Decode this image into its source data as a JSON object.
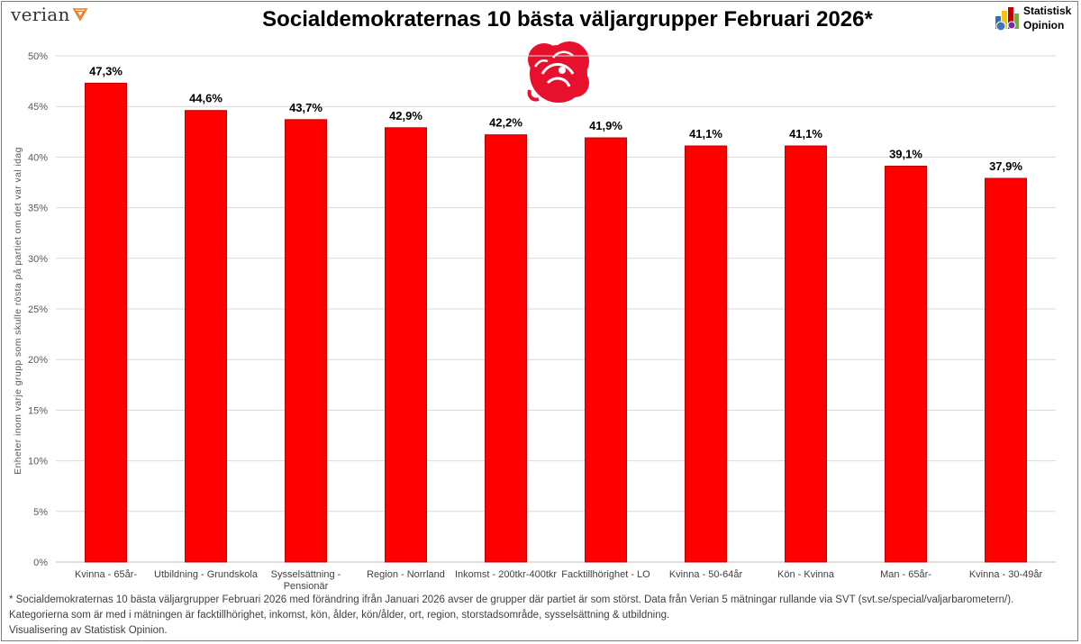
{
  "header": {
    "brand_left": "verian",
    "title": "Socialdemokraternas 10 bästa väljargrupper Februari 2026*",
    "brand_right_line1": "Statistisk",
    "brand_right_line2": "Opinion"
  },
  "colors": {
    "bar": "#ff0000",
    "bar_edge": "#c00000",
    "grid": "#d9d9d9",
    "rose": "#e8112d"
  },
  "chart_data": {
    "type": "bar",
    "title": "Socialdemokraternas 10 bästa väljargrupper Februari 2026*",
    "ylabel": "Enheter inom varje grupp som skulle rösta på partiet om det var val idag",
    "xlabel": "",
    "ylim": [
      0,
      50
    ],
    "yticks": [
      "0%",
      "5%",
      "10%",
      "15%",
      "20%",
      "25%",
      "30%",
      "35%",
      "40%",
      "45%",
      "50%"
    ],
    "grid": true,
    "categories": [
      [
        "Kvinna - 65år-"
      ],
      [
        "Utbildning - Grundskola"
      ],
      [
        "Sysselsättning -",
        "Pensionär"
      ],
      [
        "Region - Norrland"
      ],
      [
        "Inkomst - 200tkr-400tkr"
      ],
      [
        "Facktillhörighet - LO"
      ],
      [
        "Kvinna - 50-64år"
      ],
      [
        "Kön - Kvinna"
      ],
      [
        "Man - 65år-"
      ],
      [
        "Kvinna - 30-49år"
      ]
    ],
    "values": [
      47.3,
      44.6,
      43.7,
      42.9,
      42.2,
      41.9,
      41.1,
      41.1,
      39.1,
      37.9
    ],
    "data_labels": [
      "47,3%",
      "44,6%",
      "43,7%",
      "42,9%",
      "42,2%",
      "41,9%",
      "41,1%",
      "41,1%",
      "39,1%",
      "37,9%"
    ]
  },
  "footnote": {
    "line1": "* Socialdemokraternas 10 bästa väljargrupper Februari 2026 med förändring ifrån Januari 2026 avser de grupper där partiet är som störst. Data från Verian 5 mätningar rullande via SVT (svt.se/special/valjarbarometern/).",
    "line2": "Kategorierna som är med i mätningen är facktillhörighet, inkomst, kön, ålder, kön/ålder, ort, region, storstadsområde, sysselsättning & utbildning.",
    "line3": " Visualisering av Statistisk Opinion."
  }
}
